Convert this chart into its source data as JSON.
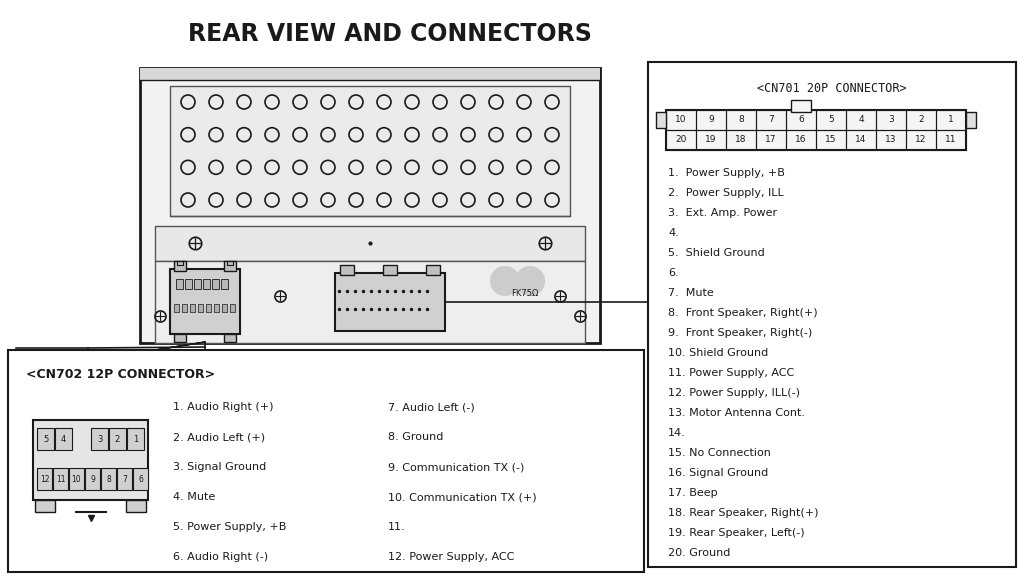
{
  "title": "REAR VIEW AND CONNECTORS",
  "bg_color": "#ffffff",
  "title_fontsize": 17,
  "cn701_label": "<CN701 20P CONNECTOR>",
  "cn702_label": "<CN702 12P CONNECTOR>",
  "cn701_pins": [
    "1.  Power Supply, +B",
    "2.  Power Supply, ILL",
    "3.  Ext. Amp. Power",
    "4.",
    "5.  Shield Ground",
    "6.",
    "7.  Mute",
    "8.  Front Speaker, Right(+)",
    "9.  Front Speaker, Right(-)",
    "10. Shield Ground",
    "11. Power Supply, ACC",
    "12. Power Supply, ILL(-)",
    "13. Motor Antenna Cont.",
    "14.",
    "15. No Connection",
    "16. Signal Ground",
    "17. Beep",
    "18. Rear Speaker, Right(+)",
    "19. Rear Speaker, Left(-)",
    "20. Ground"
  ],
  "cn702_col1": [
    "1. Audio Right (+)",
    "2. Audio Left (+)",
    "3. Signal Ground",
    "4. Mute",
    "5. Power Supply, +B",
    "6. Audio Right (-)"
  ],
  "cn702_col2": [
    "7. Audio Left (-)",
    "8. Ground",
    "9. Communication TX (-)",
    "10. Communication TX (+)",
    "11.",
    "12. Power Supply, ACC"
  ],
  "text_color": "#1a1a1a",
  "box_color": "#1a1a1a",
  "hole_color": "#1a1a1a",
  "fk75_label": "FK75Ω"
}
